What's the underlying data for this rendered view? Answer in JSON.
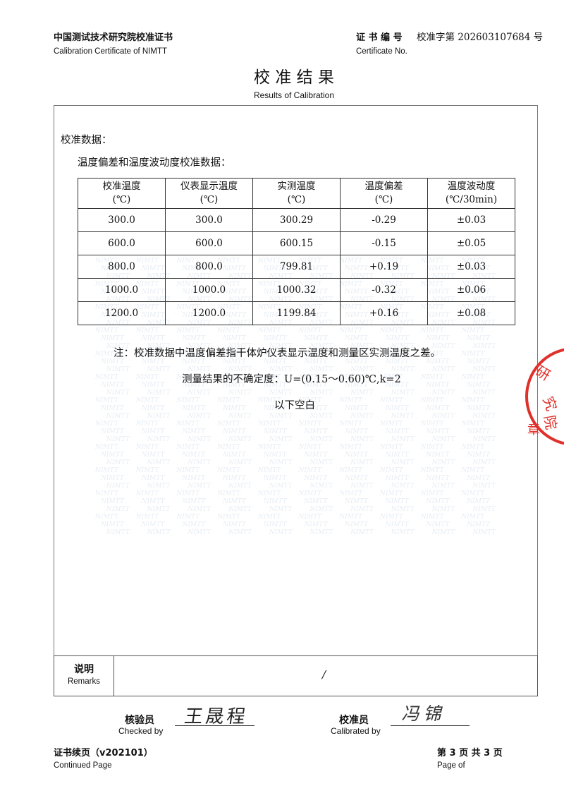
{
  "header": {
    "org_cn": "中国测试技术研究院校准证书",
    "org_en": "Calibration Certificate of NIMTT",
    "cert_no_label_cn": "证 书 编 号",
    "cert_no_value": "校准字第 202603107684 号",
    "cert_no_label_en": "Certificate No."
  },
  "title": {
    "cn": "校 准 结 果",
    "en": "Results of Calibration"
  },
  "body": {
    "section": "校准数据：",
    "subsection": "温度偏差和温度波动度校准数据：",
    "table": {
      "headers": [
        [
          "校准温度",
          "(℃)"
        ],
        [
          "仪表显示温度",
          "(℃)"
        ],
        [
          "实测温度",
          "(℃)"
        ],
        [
          "温度偏差",
          "(℃)"
        ],
        [
          "温度波动度",
          "(℃/30min)"
        ]
      ],
      "rows": [
        [
          "300.0",
          "300.0",
          "300.29",
          "-0.29",
          "±0.03"
        ],
        [
          "600.0",
          "600.0",
          "600.15",
          "-0.15",
          "±0.05"
        ],
        [
          "800.0",
          "800.0",
          "799.81",
          "+0.19",
          "±0.03"
        ],
        [
          "1000.0",
          "1000.0",
          "1000.32",
          "-0.32",
          "±0.06"
        ],
        [
          "1200.0",
          "1200.0",
          "1199.84",
          "+0.16",
          "±0.08"
        ]
      ]
    },
    "note": "注：校准数据中温度偏差指干体炉仪表显示温度和测量区实测温度之差。",
    "uncertainty": "测量结果的不确定度：U=(0.15～0.60)℃,k=2",
    "blank": "以下空白",
    "watermark": "NIMTT",
    "stamp": "研究院 章"
  },
  "remarks": {
    "label_cn": "说明",
    "label_en": "Remarks",
    "value": "/"
  },
  "signatures": {
    "checked_cn": "核验员",
    "checked_en": "Checked by",
    "checked_sig": "王晟程",
    "calibrated_cn": "校准员",
    "calibrated_en": "Calibrated by",
    "calibrated_sig": "冯锦"
  },
  "footer": {
    "left_cn": "证书续页（v202101）",
    "left_en": "Continued Page",
    "right_cn": "第 3 页 共 3 页",
    "right_en": "Page of"
  },
  "colors": {
    "stamp": "#e0302a",
    "watermark": "#7a9ac0"
  }
}
